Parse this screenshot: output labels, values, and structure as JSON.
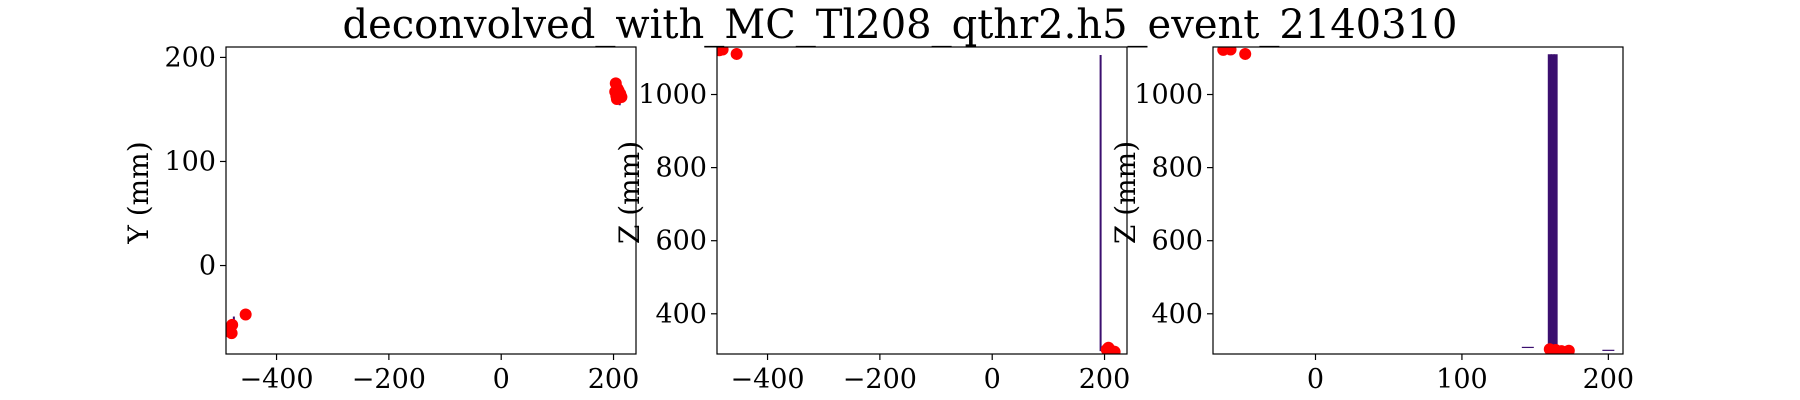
{
  "figure": {
    "title": "deconvolved_with_MC_Tl208_qthr2.h5_event_2140310"
  },
  "chart_data": [
    {
      "type": "scatter",
      "xlabel": "",
      "ylabel": "Y (mm)",
      "xlim": [
        -490,
        240
      ],
      "ylim": [
        -85,
        210
      ],
      "xticks": [
        -400,
        -200,
        0,
        200
      ],
      "yticks": [
        0,
        100,
        200
      ],
      "points": [
        {
          "x": -455,
          "y": -47
        },
        {
          "x": -479,
          "y": -57
        },
        {
          "x": -483,
          "y": -60
        },
        {
          "x": -486,
          "y": -63
        },
        {
          "x": -480,
          "y": -65
        },
        {
          "x": -488,
          "y": -62
        },
        {
          "x": 204,
          "y": 175
        },
        {
          "x": 207,
          "y": 170
        },
        {
          "x": 209,
          "y": 168
        },
        {
          "x": 205,
          "y": 163
        },
        {
          "x": 212,
          "y": 165
        },
        {
          "x": 214,
          "y": 162
        },
        {
          "x": 206,
          "y": 160
        },
        {
          "x": 203,
          "y": 167
        }
      ],
      "hits": [
        {
          "x": -476,
          "y": -49,
          "y2": -67
        },
        {
          "x": 211,
          "y": 178,
          "y2": 154
        }
      ]
    },
    {
      "type": "scatter",
      "xlabel": "",
      "ylabel": "Z (mm)",
      "xlim": [
        -490,
        240
      ],
      "ylim": [
        290,
        1130
      ],
      "xticks": [
        -400,
        -200,
        0,
        200
      ],
      "yticks": [
        400,
        600,
        800,
        1000
      ],
      "points": [
        {
          "x": -486,
          "y": 1121
        },
        {
          "x": -480,
          "y": 1123
        },
        {
          "x": -455,
          "y": 1111
        },
        {
          "x": 204,
          "y": 302
        },
        {
          "x": 207,
          "y": 307
        },
        {
          "x": 212,
          "y": 299
        },
        {
          "x": 218,
          "y": 296
        },
        {
          "x": 208,
          "y": 298
        }
      ],
      "hits": [
        {
          "x": 193,
          "y": 1108,
          "y2": 298
        }
      ]
    },
    {
      "type": "scatter",
      "xlabel": "",
      "ylabel": "Z (mm)",
      "xlim": [
        -70,
        210
      ],
      "ylim": [
        290,
        1130
      ],
      "xticks": [
        0,
        100,
        200
      ],
      "yticks": [
        400,
        600,
        800,
        1000
      ],
      "points": [
        {
          "x": -63,
          "y": 1122
        },
        {
          "x": -58,
          "y": 1123
        },
        {
          "x": -48,
          "y": 1111
        },
        {
          "x": 160,
          "y": 303
        },
        {
          "x": 164,
          "y": 301
        },
        {
          "x": 168,
          "y": 298
        },
        {
          "x": 173,
          "y": 299
        },
        {
          "x": 162,
          "y": 296
        }
      ],
      "hits": [
        {
          "x": 160,
          "y": 1110,
          "y2": 300,
          "w": 4
        },
        {
          "x": 162,
          "y": 1110,
          "y2": 300,
          "w": 4
        },
        {
          "x": 164,
          "y": 1110,
          "y2": 300,
          "w": 4
        },
        {
          "x": 200,
          "y": 300,
          "y2": 300
        },
        {
          "x": 145,
          "y": 308,
          "y2": 308
        }
      ]
    }
  ]
}
